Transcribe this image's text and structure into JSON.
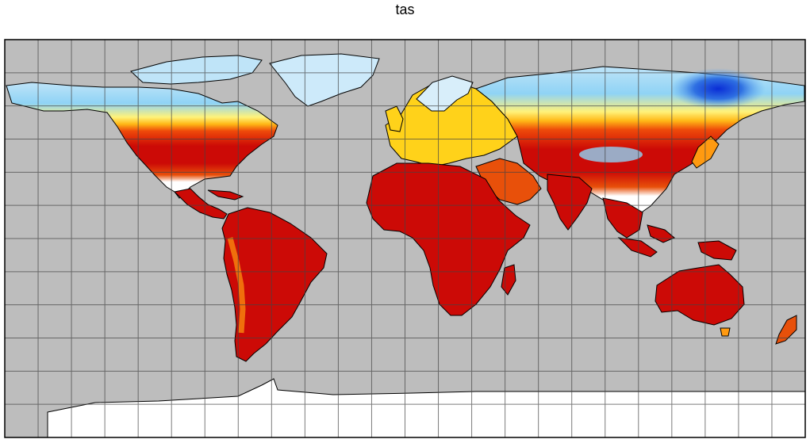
{
  "title": "tas",
  "map": {
    "projection": "equirectangular",
    "variable": "tas",
    "ocean_color": "#bdbdbd",
    "grid": true,
    "lon_grid_step_deg": 15,
    "lat_grid_step_deg": 15,
    "colormap": [
      "#0a2dd6",
      "#3b8fe6",
      "#8fd3f5",
      "#d8eefa",
      "#fff27a",
      "#ffd21a",
      "#ff9a10",
      "#ee4a0a",
      "#cc0a06"
    ]
  }
}
